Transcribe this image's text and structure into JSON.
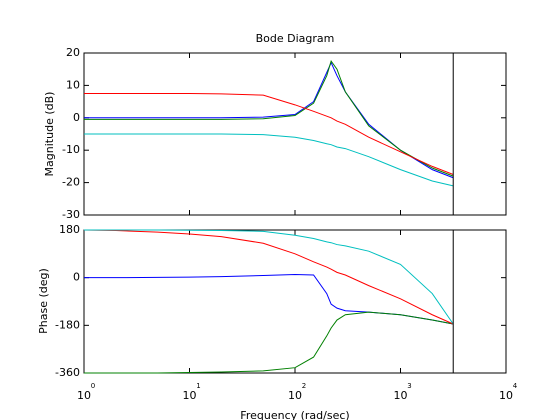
{
  "chart_data": [
    {
      "type": "line",
      "title": "Bode Diagram",
      "ylabel": "Magnitude (dB)",
      "xscale": "log",
      "x": [
        1,
        2,
        5,
        10,
        20,
        50,
        100,
        150,
        200,
        220,
        250,
        300,
        500,
        1000,
        2000,
        3160
      ],
      "xlim": [
        1,
        10000
      ],
      "xticks": [
        1,
        10,
        100,
        1000,
        10000
      ],
      "ylim": [
        -30,
        20
      ],
      "yticks": [
        -30,
        -20,
        -10,
        0,
        10,
        20
      ],
      "vline": 3160,
      "series": [
        {
          "color": "#0000ff",
          "values": [
            0,
            0,
            0,
            0,
            0,
            0.2,
            1,
            5,
            14,
            17,
            13,
            8,
            -2,
            -10,
            -16,
            -18.5
          ]
        },
        {
          "color": "#008000",
          "values": [
            -0.5,
            -0.5,
            -0.5,
            -0.5,
            -0.5,
            -0.3,
            0.7,
            4.5,
            13,
            17.5,
            15,
            8,
            -2.5,
            -10,
            -15.5,
            -18
          ]
        },
        {
          "color": "#ff0000",
          "values": [
            7.5,
            7.5,
            7.5,
            7.5,
            7.4,
            7,
            4,
            2,
            0.5,
            0,
            -1,
            -2,
            -6,
            -10.5,
            -15,
            -17.5
          ]
        },
        {
          "color": "#00bfbf",
          "values": [
            -5,
            -5,
            -5,
            -5,
            -5,
            -5.2,
            -6,
            -7,
            -8,
            -8.3,
            -9,
            -9.5,
            -12,
            -16,
            -19.5,
            -21
          ]
        }
      ]
    },
    {
      "type": "line",
      "ylabel": "Phase (deg)",
      "xlabel": "Frequency  (rad/sec)",
      "xscale": "log",
      "x": [
        1,
        2,
        5,
        10,
        20,
        50,
        100,
        150,
        200,
        220,
        250,
        300,
        500,
        1000,
        2000,
        3160
      ],
      "xlim": [
        1,
        10000
      ],
      "xticks": [
        {
          "value": 1,
          "label": "10",
          "exponent": "0"
        },
        {
          "value": 10,
          "label": "10",
          "exponent": "1"
        },
        {
          "value": 100,
          "label": "10",
          "exponent": "2"
        },
        {
          "value": 1000,
          "label": "10",
          "exponent": "3"
        },
        {
          "value": 10000,
          "label": "10",
          "exponent": "4"
        }
      ],
      "ylim": [
        -360,
        180
      ],
      "yticks": [
        -360,
        -180,
        0,
        180
      ],
      "vline": 3160,
      "series": [
        {
          "color": "#0000ff",
          "values": [
            0,
            0,
            1,
            2,
            4,
            8,
            12,
            10,
            -60,
            -100,
            -115,
            -125,
            -130,
            -140,
            -160,
            -175
          ]
        },
        {
          "color": "#008000",
          "values": [
            -360,
            -360,
            -360,
            -358,
            -356,
            -352,
            -340,
            -300,
            -220,
            -190,
            -160,
            -140,
            -130,
            -140,
            -160,
            -175
          ]
        },
        {
          "color": "#ff0000",
          "values": [
            180,
            178,
            172,
            165,
            155,
            130,
            90,
            60,
            40,
            32,
            20,
            10,
            -30,
            -80,
            -140,
            -175
          ]
        },
        {
          "color": "#00bfbf",
          "values": [
            180,
            180,
            180,
            179,
            178,
            175,
            160,
            148,
            135,
            132,
            125,
            120,
            100,
            50,
            -60,
            -175
          ]
        }
      ]
    }
  ]
}
